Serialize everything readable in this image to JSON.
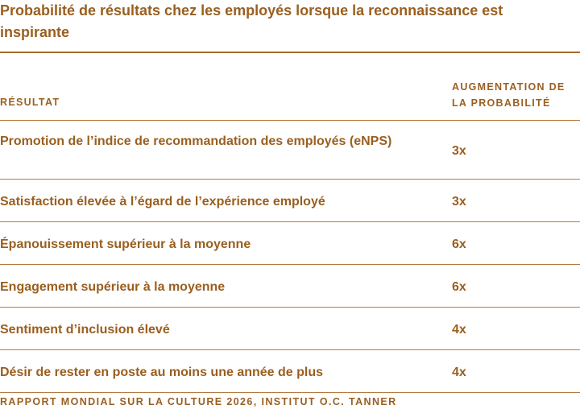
{
  "title": "Probabilité de résultats chez les employés lorsque la reconnaissance est inspirante",
  "table": {
    "columns": [
      "RÉSULTAT",
      "AUGMENTATION DE LA PROBABILITÉ"
    ],
    "rows": [
      {
        "result": "Promotion de l’indice de recommandation des employés (eNPS)",
        "increase": "3x"
      },
      {
        "result": "Satisfaction élevée à l’égard de l’expérience employé",
        "increase": "3x"
      },
      {
        "result": "Épanouissement supérieur à la moyenne",
        "increase": "6x"
      },
      {
        "result": "Engagement supérieur à la moyenne",
        "increase": "6x"
      },
      {
        "result": "Sentiment d’inclusion élevé",
        "increase": "4x"
      },
      {
        "result": "Désir de rester en poste au moins une année de plus",
        "increase": "4x"
      }
    ]
  },
  "source": "RAPPORT MONDIAL SUR LA CULTURE 2026, INSTITUT O.C. TANNER",
  "colors": {
    "text": "#9a5f1f",
    "rule": "#a76a2a"
  }
}
